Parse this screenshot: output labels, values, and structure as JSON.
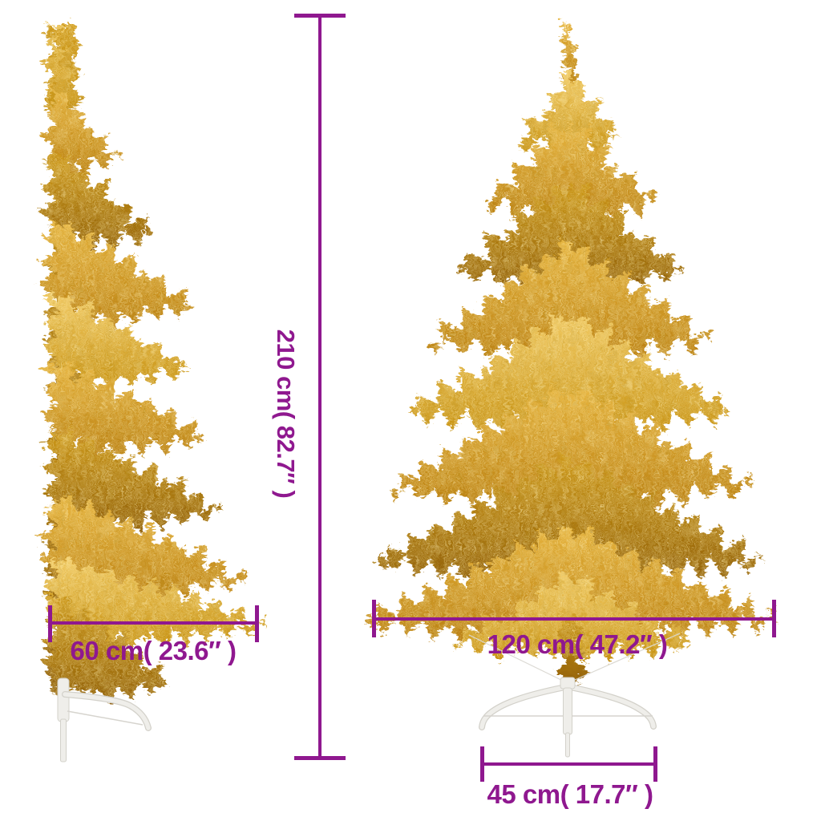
{
  "diagram": {
    "type": "product-dimensions",
    "subject": "gold half artificial christmas tree with stand, side view and front view",
    "accent_color": "#8F188F",
    "measurements": {
      "height": {
        "label": "210 cm( 82.7″ )",
        "value_cm": 210,
        "value_in": 82.7
      },
      "half_width": {
        "label": "60 cm( 23.6″ )",
        "value_cm": 60,
        "value_in": 23.6
      },
      "full_width": {
        "label": "120 cm( 47.2″ )",
        "value_cm": 120,
        "value_in": 47.2
      },
      "stand_width": {
        "label": "45 cm( 17.7″ )",
        "value_cm": 45,
        "value_in": 17.7
      }
    },
    "colors": {
      "tree_gold_light": "#F2CB64",
      "tree_gold_mid": "#D79F1E",
      "tree_gold_dark": "#9A660A",
      "stand_white": "#EFEEEA"
    }
  }
}
